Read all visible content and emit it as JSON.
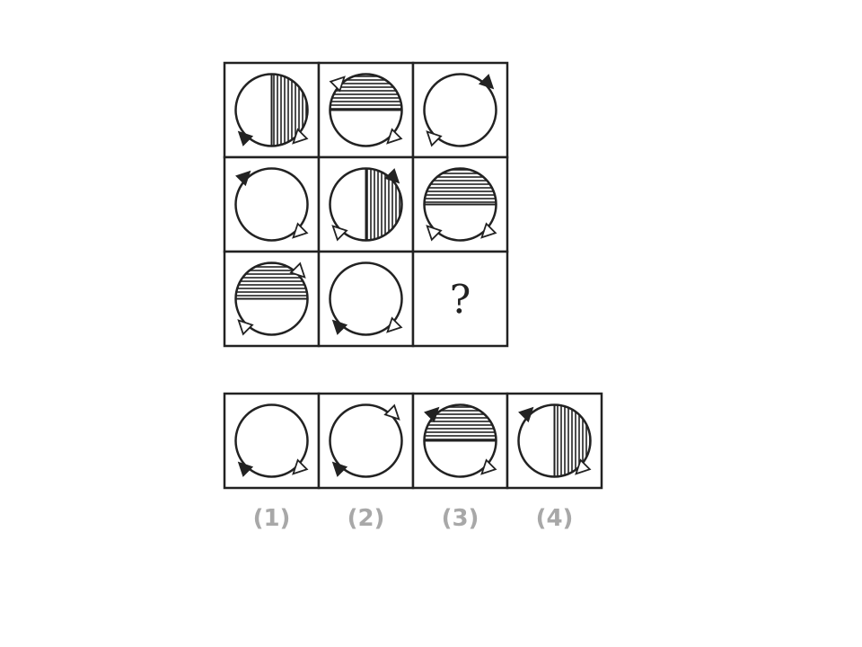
{
  "question_grid": {
    "cells": [
      {
        "shading": "right-vertical",
        "solid_arrow": "bottom-left",
        "hollow_arrows": [
          "bottom-right"
        ]
      },
      {
        "shading": "top-horizontal",
        "solid_arrow": "none",
        "hollow_arrows": [
          "top-left",
          "bottom-right"
        ]
      },
      {
        "shading": "none",
        "solid_arrow": "top-right",
        "hollow_arrows": [
          "bottom-left"
        ]
      },
      {
        "shading": "none",
        "solid_arrow": "top-left",
        "hollow_arrows": [
          "bottom-right"
        ]
      },
      {
        "shading": "right-vertical",
        "solid_arrow": "top-right",
        "hollow_arrows": [
          "bottom-left"
        ]
      },
      {
        "shading": "top-horizontal",
        "solid_arrow": "none",
        "hollow_arrows": [
          "bottom-left",
          "bottom-right"
        ]
      },
      {
        "shading": "top-horizontal",
        "solid_arrow": "none",
        "hollow_arrows": [
          "top-right",
          "bottom-left"
        ]
      },
      {
        "shading": "none",
        "solid_arrow": "bottom-left",
        "hollow_arrows": [
          "bottom-right"
        ]
      },
      {
        "question": "?"
      }
    ]
  },
  "options": {
    "cells": [
      {
        "shading": "none",
        "solid_arrow": "bottom-left",
        "hollow_arrows": [
          "bottom-right"
        ]
      },
      {
        "shading": "none",
        "solid_arrow": "bottom-left",
        "hollow_arrows": [
          "top-right"
        ]
      },
      {
        "shading": "top-horizontal",
        "solid_arrow": "top-left",
        "hollow_arrows": [
          "bottom-right"
        ]
      },
      {
        "shading": "right-vertical",
        "solid_arrow": "top-left",
        "hollow_arrows": [
          "bottom-right"
        ]
      }
    ],
    "labels": [
      "(1)",
      "(2)",
      "(3)",
      "(4)"
    ]
  }
}
